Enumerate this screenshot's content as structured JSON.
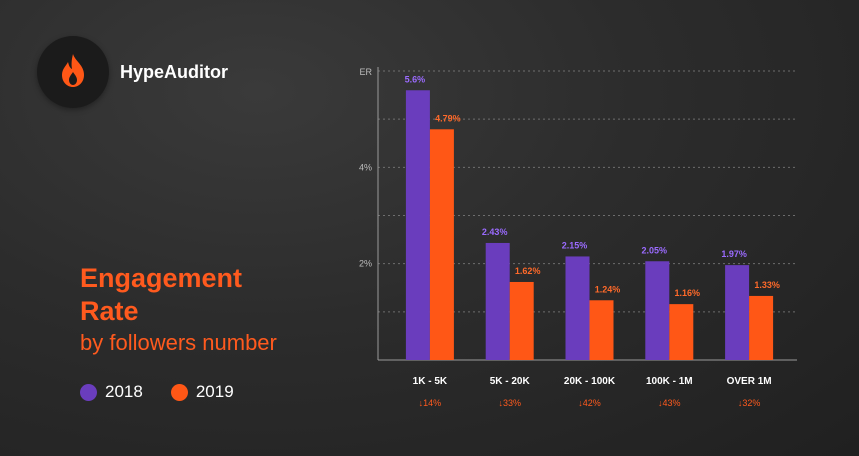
{
  "brand": {
    "name": "HypeAuditor",
    "icon": "flame-icon"
  },
  "heading": {
    "line1": "Engagement",
    "line2": "Rate",
    "subtitle": "by followers number"
  },
  "colors": {
    "series2018": "#6a3dbd",
    "series2019": "#ff5716",
    "accent": "#ff5a1e"
  },
  "legend": [
    {
      "label": "2018",
      "color": "#6a3dbd"
    },
    {
      "label": "2019",
      "color": "#ff5716"
    }
  ],
  "chart_data": {
    "type": "bar",
    "ylabel": "ER",
    "ylim": [
      0,
      6
    ],
    "yticks": [
      {
        "value": 2,
        "label": "2%"
      },
      {
        "value": 4,
        "label": "4%"
      }
    ],
    "grid": true,
    "categories": [
      "1K - 5K",
      "5K - 20K",
      "20K - 100K",
      "100K - 1M",
      "OVER 1M"
    ],
    "series": [
      {
        "name": "2018",
        "values": [
          5.6,
          2.43,
          2.15,
          2.05,
          1.97
        ],
        "labels": [
          "5.6%",
          "2.43%",
          "2.15%",
          "2.05%",
          "1.97%"
        ]
      },
      {
        "name": "2019",
        "values": [
          4.79,
          1.62,
          1.24,
          1.16,
          1.33
        ],
        "labels": [
          "4.79%",
          "1.62%",
          "1.24%",
          "1.16%",
          "1.33%"
        ]
      }
    ],
    "changes": [
      "↓14%",
      "↓33%",
      "↓42%",
      "↓43%",
      "↓32%"
    ]
  }
}
